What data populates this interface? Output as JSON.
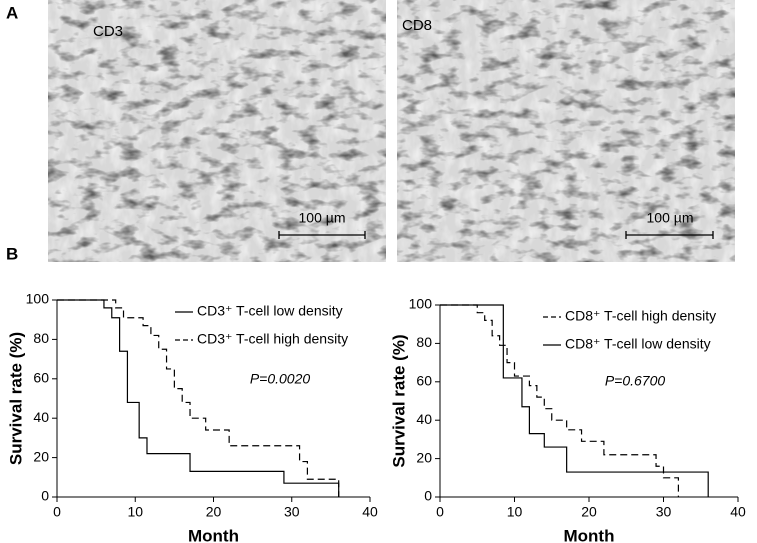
{
  "panel_labels": [
    "A",
    "B"
  ],
  "images": [
    {
      "label": "CD3",
      "scale_bar": "100 µm"
    },
    {
      "label": "CD8",
      "scale_bar": "100 µm"
    }
  ],
  "chart_data": [
    {
      "type": "step",
      "xlabel": "Month",
      "ylabel": "Survival rate (%)",
      "xlim": [
        0,
        40
      ],
      "xticks": [
        0,
        10,
        20,
        30,
        40
      ],
      "ylim": [
        0,
        100
      ],
      "yticks": [
        0,
        20,
        40,
        60,
        80,
        100
      ],
      "legend": "top-right",
      "annotation": "P=0.0020",
      "series": [
        {
          "name": "CD3⁺ T-cell low density",
          "color": "#000000",
          "dashed": false,
          "x": [
            0,
            6,
            7,
            8,
            9,
            10.5,
            11.5,
            17,
            29,
            36
          ],
          "values": [
            100,
            96,
            91,
            74,
            48,
            30,
            22,
            13,
            7,
            0
          ]
        },
        {
          "name": "CD3⁺ T-cell high density",
          "color": "#000000",
          "dashed": true,
          "x": [
            0,
            7.5,
            8.5,
            11,
            12,
            13,
            14,
            15,
            16,
            17,
            19,
            22,
            31,
            32,
            36
          ],
          "values": [
            100,
            96,
            91,
            87,
            82,
            75,
            65,
            55,
            48,
            40,
            34,
            26,
            18,
            9,
            0
          ]
        }
      ]
    },
    {
      "type": "step",
      "xlabel": "Month",
      "ylabel": "Survival rate (%)",
      "xlim": [
        0,
        40
      ],
      "xticks": [
        0,
        10,
        20,
        30,
        40
      ],
      "ylim": [
        0,
        100
      ],
      "yticks": [
        0,
        20,
        40,
        60,
        80,
        100
      ],
      "legend": "top-right",
      "annotation": "P=0.6700",
      "series": [
        {
          "name": "CD8⁺ T-cell high density",
          "color": "#000000",
          "dashed": true,
          "x": [
            0,
            5,
            6,
            7,
            8,
            9,
            10,
            12,
            13,
            14,
            15,
            17,
            19,
            22,
            29,
            30,
            32
          ],
          "values": [
            100,
            96,
            92,
            84,
            79,
            70,
            63,
            58,
            52,
            46,
            40,
            35,
            29,
            22,
            16,
            10,
            0
          ]
        },
        {
          "name": "CD8⁺ T-cell low density",
          "color": "#000000",
          "dashed": false,
          "x": [
            0,
            8.5,
            11,
            12,
            14,
            17,
            36
          ],
          "values": [
            100,
            62,
            47,
            33,
            26,
            13,
            0
          ]
        }
      ]
    }
  ]
}
